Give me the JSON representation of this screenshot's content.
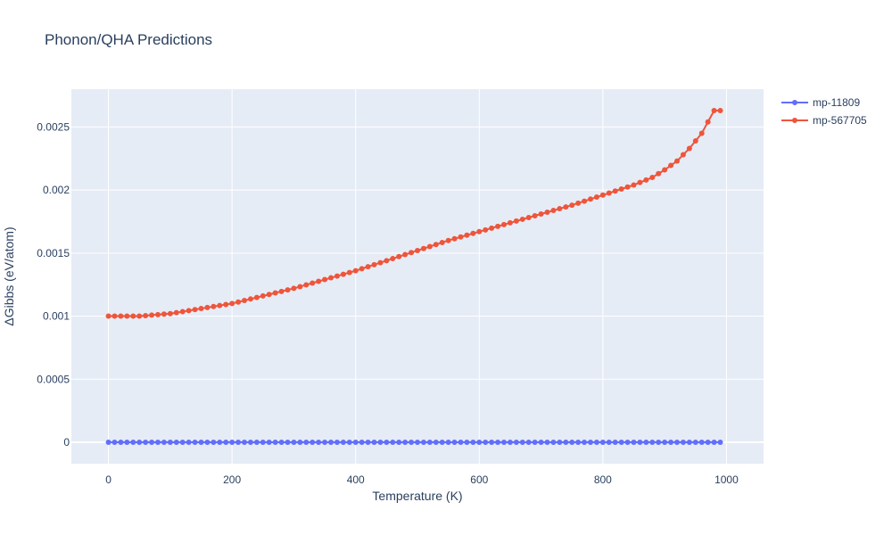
{
  "chart_data": {
    "type": "line",
    "title": "Phonon/QHA Predictions",
    "xlabel": "Temperature (K)",
    "ylabel": "ΔGibbs (eV/atom)",
    "xlim": [
      -60,
      1060
    ],
    "ylim": [
      -0.00017,
      0.0028
    ],
    "x_ticks": [
      0,
      200,
      400,
      600,
      800,
      1000
    ],
    "x_tick_labels": [
      "0",
      "200",
      "400",
      "600",
      "800",
      "1000"
    ],
    "y_ticks": [
      0,
      0.0005,
      0.001,
      0.0015,
      0.002,
      0.0025
    ],
    "y_tick_labels": [
      "0",
      "0.0005",
      "0.001",
      "0.0015",
      "0.002",
      "0.0025"
    ],
    "grid": true,
    "legend_position": "top-right-outside",
    "series": [
      {
        "name": "mp-11809",
        "color": "#636efa",
        "x_start": 0,
        "x_step": 10,
        "count": 100,
        "y_points": [
          [
            0,
            0
          ],
          [
            990,
            0
          ]
        ]
      },
      {
        "name": "mp-567705",
        "color": "#ef553b",
        "x_start": 0,
        "x_step": 10,
        "count": 100,
        "y_points": [
          [
            0,
            0.001
          ],
          [
            50,
            0.001
          ],
          [
            100,
            0.00102
          ],
          [
            150,
            0.00106
          ],
          [
            200,
            0.0011
          ],
          [
            250,
            0.00116
          ],
          [
            300,
            0.00122
          ],
          [
            350,
            0.00129
          ],
          [
            400,
            0.00136
          ],
          [
            450,
            0.00144
          ],
          [
            500,
            0.00152
          ],
          [
            550,
            0.0016
          ],
          [
            600,
            0.00167
          ],
          [
            650,
            0.00174
          ],
          [
            700,
            0.00181
          ],
          [
            750,
            0.00188
          ],
          [
            800,
            0.00196
          ],
          [
            850,
            0.00204
          ],
          [
            880,
            0.0021
          ],
          [
            900,
            0.00216
          ],
          [
            920,
            0.00223
          ],
          [
            940,
            0.00233
          ],
          [
            960,
            0.00245
          ],
          [
            970,
            0.00254
          ],
          [
            980,
            0.00263
          ],
          [
            990,
            0.00263
          ]
        ]
      }
    ]
  }
}
